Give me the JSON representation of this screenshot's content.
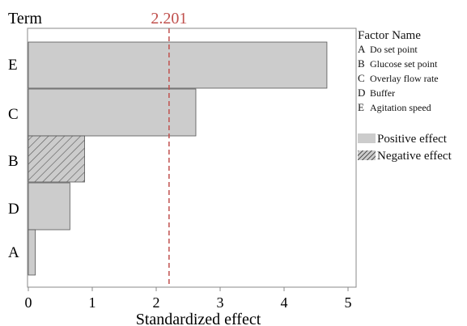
{
  "chart_data": {
    "type": "bar",
    "orientation": "horizontal",
    "categories": [
      "E",
      "C",
      "B",
      "D",
      "A"
    ],
    "values": [
      4.67,
      2.62,
      0.88,
      0.65,
      0.11
    ],
    "effect_sign": [
      "positive",
      "positive",
      "negative",
      "positive",
      "positive"
    ],
    "xlabel": "Standardized effect",
    "ylabel": "Term",
    "xlim": [
      0,
      5.1
    ],
    "xticks": [
      "0",
      "1",
      "2",
      "3",
      "4",
      "5"
    ],
    "reference_line": {
      "value": 2.201,
      "label": "2.201",
      "color": "#c0504d"
    },
    "legend": {
      "title": "Factor Name",
      "factors": [
        {
          "code": "A",
          "name": "Do set point"
        },
        {
          "code": "B",
          "name": "Glucose set point"
        },
        {
          "code": "C",
          "name": "Overlay flow rate"
        },
        {
          "code": "D",
          "name": "Buffer"
        },
        {
          "code": "E",
          "name": "Agitation speed"
        }
      ],
      "positive_label": "Positive effect",
      "negative_label": "Negative effect"
    },
    "colors": {
      "bar_fill": "#cccccc",
      "bar_stroke": "#555555",
      "hatch": "#555555"
    }
  }
}
